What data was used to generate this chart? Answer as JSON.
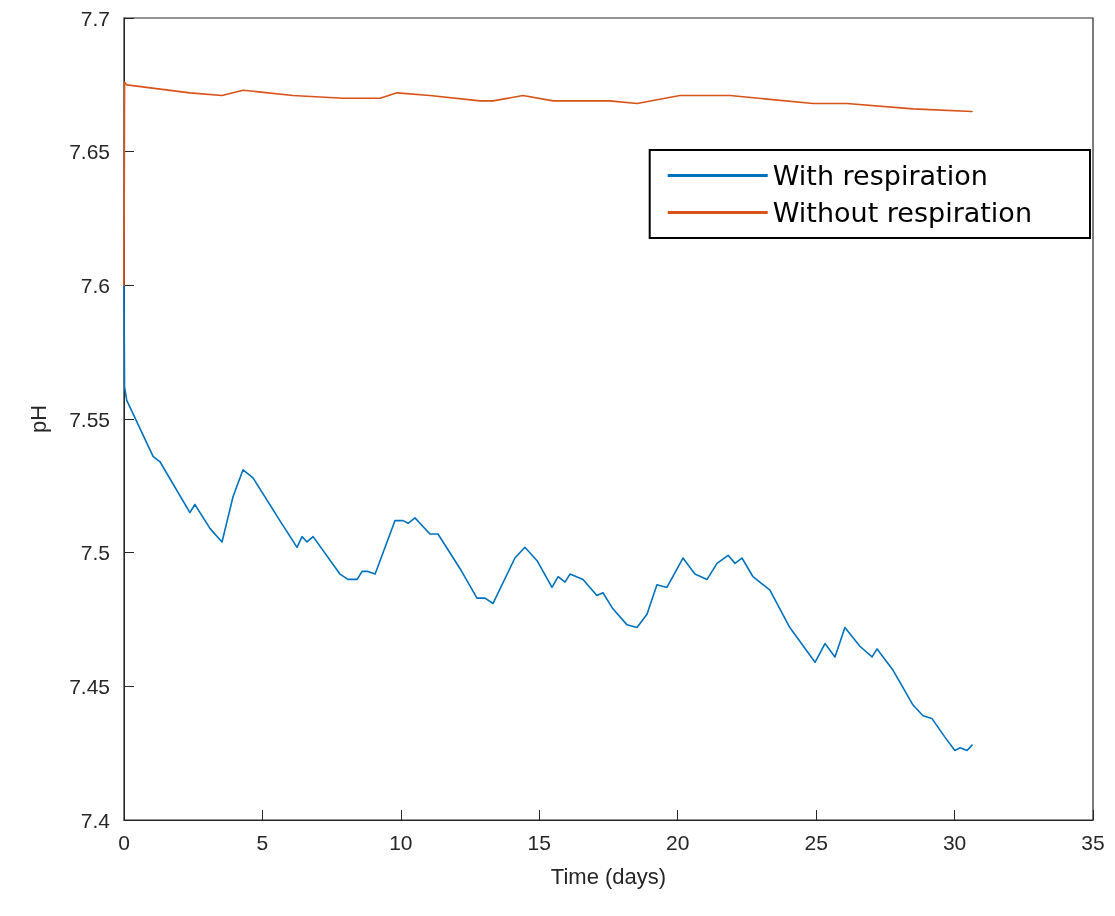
{
  "chart_data": {
    "type": "line",
    "xlabel": "Time (days)",
    "ylabel": "pH",
    "xlim": [
      0,
      35
    ],
    "xticks": [
      0,
      5,
      10,
      15,
      20,
      25,
      30,
      35
    ],
    "ylim": [
      7.4,
      7.7
    ],
    "yticks": [
      7.4,
      7.45,
      7.5,
      7.55,
      7.6,
      7.65,
      7.7
    ],
    "grid": false,
    "legend": "top right",
    "marker": "none",
    "line_style": "solid",
    "series": [
      {
        "name": "With respiration",
        "color": "#0072bd",
        "x": [
          0,
          0.02,
          0.1,
          1.05,
          1.3,
          2.38,
          2.56,
          3.11,
          3.54,
          3.94,
          4.3,
          4.66,
          5.63,
          6.25,
          6.43,
          6.61,
          6.83,
          7.8,
          8.09,
          8.42,
          8.6,
          8.81,
          9.07,
          9.79,
          10.08,
          10.26,
          10.51,
          11.05,
          11.34,
          12.14,
          12.75,
          13.04,
          13.33,
          14.12,
          14.48,
          14.92,
          15.46,
          15.68,
          15.93,
          16.11,
          16.58,
          17.08,
          17.3,
          17.66,
          18.17,
          18.53,
          18.89,
          19.25,
          19.61,
          20.19,
          20.62,
          21.06,
          21.42,
          21.82,
          22.07,
          22.32,
          22.72,
          23.33,
          24.05,
          24.96,
          25.32,
          25.68,
          26.04,
          26.58,
          27.02,
          27.2,
          27.78,
          28.5,
          28.86,
          29.18,
          29.65,
          30.01,
          30.2,
          30.45,
          30.63
        ],
        "values": [
          7.6,
          7.562,
          7.557,
          7.536,
          7.534,
          7.515,
          7.518,
          7.509,
          7.504,
          7.521,
          7.531,
          7.528,
          7.512,
          7.502,
          7.506,
          7.504,
          7.506,
          7.492,
          7.49,
          7.49,
          7.493,
          7.493,
          7.492,
          7.512,
          7.512,
          7.511,
          7.513,
          7.507,
          7.507,
          7.494,
          7.483,
          7.483,
          7.481,
          7.498,
          7.502,
          7.497,
          7.487,
          7.491,
          7.489,
          7.492,
          7.49,
          7.484,
          7.485,
          7.479,
          7.473,
          7.472,
          7.477,
          7.488,
          7.487,
          7.498,
          7.492,
          7.49,
          7.496,
          7.499,
          7.496,
          7.498,
          7.491,
          7.486,
          7.472,
          7.459,
          7.466,
          7.461,
          7.472,
          7.465,
          7.461,
          7.464,
          7.456,
          7.443,
          7.439,
          7.438,
          7.431,
          7.426,
          7.427,
          7.426,
          7.428
        ]
      },
      {
        "name": "Without respiration",
        "color": "#d95319",
        "x": [
          0,
          0.02,
          0.1,
          2.38,
          3.54,
          4.3,
          6.1,
          7.91,
          9.25,
          9.86,
          11.05,
          12.86,
          13.33,
          14.41,
          15.5,
          17.55,
          18.53,
          20.08,
          21.89,
          24.89,
          26.11,
          28.5,
          30.63
        ],
        "values": [
          7.6,
          7.676,
          7.675,
          7.672,
          7.671,
          7.673,
          7.671,
          7.67,
          7.67,
          7.672,
          7.671,
          7.669,
          7.669,
          7.671,
          7.669,
          7.669,
          7.668,
          7.671,
          7.671,
          7.668,
          7.668,
          7.666,
          7.665
        ]
      }
    ]
  }
}
